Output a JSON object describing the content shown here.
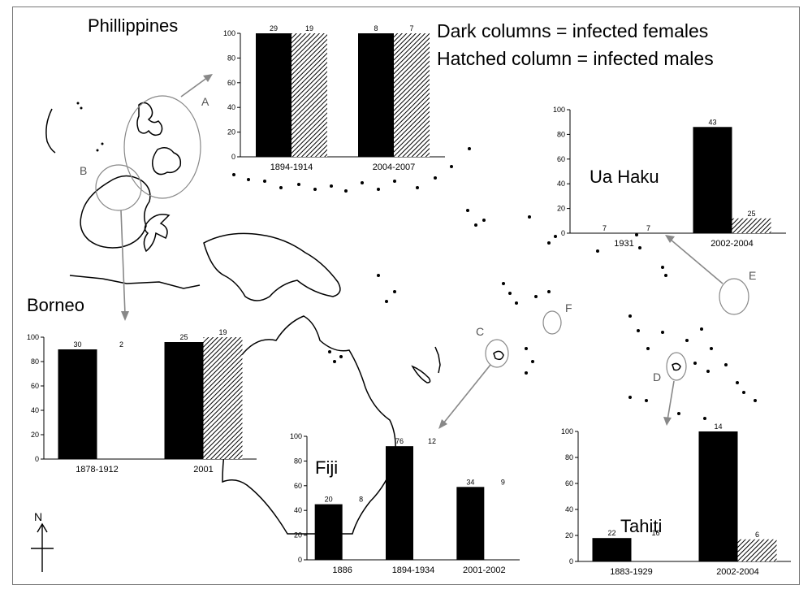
{
  "legend": {
    "dark": "Dark columns = infected females",
    "hatched": "Hatched column = infected males"
  },
  "map": {
    "letters": [
      "A",
      "B",
      "C",
      "D",
      "E",
      "F"
    ],
    "compass": "N"
  },
  "colors": {
    "females": "#000000",
    "males": "hatched"
  },
  "chart_data": [
    {
      "type": "bar",
      "region": "Phillippines",
      "ylim": [
        0,
        100
      ],
      "ticks": [
        0,
        20,
        40,
        60,
        80,
        100
      ],
      "categories": [
        "1894-1914",
        "2004-2007"
      ],
      "females": [
        100,
        100
      ],
      "males": [
        100,
        100
      ],
      "female_labels": [
        "29",
        "8"
      ],
      "male_labels": [
        "19",
        "7"
      ]
    },
    {
      "type": "bar",
      "region": "Ua Haku",
      "ylim": [
        0,
        100
      ],
      "ticks": [
        0,
        20,
        40,
        60,
        80,
        100
      ],
      "categories": [
        "1931",
        "2002-2004"
      ],
      "females": [
        0,
        86
      ],
      "males": [
        0,
        12
      ],
      "female_labels": [
        "7",
        "43"
      ],
      "male_labels": [
        "7",
        "25"
      ]
    },
    {
      "type": "bar",
      "region": "Borneo",
      "ylim": [
        0,
        100
      ],
      "ticks": [
        0,
        20,
        40,
        60,
        80,
        100
      ],
      "categories": [
        "1878-1912",
        "2001"
      ],
      "females": [
        90,
        96
      ],
      "males": [
        0,
        100
      ],
      "female_labels": [
        "30",
        "25"
      ],
      "male_labels": [
        "2",
        "19"
      ]
    },
    {
      "type": "bar",
      "region": "Fiji",
      "ylim": [
        0,
        100
      ],
      "ticks": [
        0,
        20,
        40,
        60,
        80,
        100
      ],
      "categories": [
        "1886",
        "1894-1934",
        "2001-2002"
      ],
      "females": [
        45,
        92,
        59
      ],
      "males": [
        0,
        0,
        0
      ],
      "female_labels": [
        "20",
        "76",
        "34"
      ],
      "male_labels": [
        "8",
        "12",
        "9"
      ]
    },
    {
      "type": "bar",
      "region": "Tahiti",
      "ylim": [
        0,
        100
      ],
      "ticks": [
        0,
        20,
        40,
        60,
        80,
        100
      ],
      "categories": [
        "1883-1929",
        "2002-2004"
      ],
      "females": [
        18,
        100
      ],
      "males": [
        0,
        17
      ],
      "female_labels": [
        "22",
        "14"
      ],
      "male_labels": [
        "16",
        "6"
      ]
    }
  ]
}
